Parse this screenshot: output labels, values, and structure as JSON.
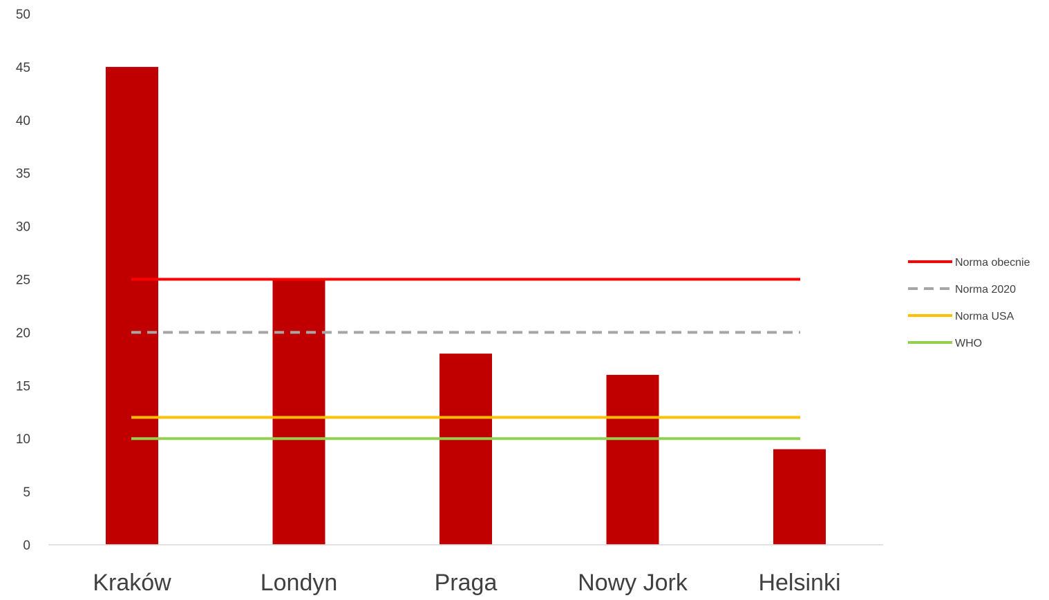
{
  "chart_data": {
    "type": "bar",
    "categories": [
      "Kraków",
      "Londyn",
      "Praga",
      "Nowy Jork",
      "Helsinki"
    ],
    "values": [
      45,
      25,
      18,
      16,
      9
    ],
    "bar_color": "#c00000",
    "ylim": [
      0,
      50
    ],
    "yticks": [
      "0",
      "5",
      "10",
      "15",
      "20",
      "25",
      "30",
      "35",
      "40",
      "45",
      "50"
    ],
    "grid": false,
    "legend_position": "right",
    "reference_lines": [
      {
        "name": "Norma obecnie",
        "value": 25,
        "color": "#ff0000",
        "style": "solid"
      },
      {
        "name": "Norma 2020",
        "value": 20,
        "color": "#a6a6a6",
        "style": "dashed"
      },
      {
        "name": "Norma USA",
        "value": 12,
        "color": "#ffc000",
        "style": "solid"
      },
      {
        "name": "WHO",
        "value": 10,
        "color": "#92d050",
        "style": "solid"
      }
    ]
  }
}
